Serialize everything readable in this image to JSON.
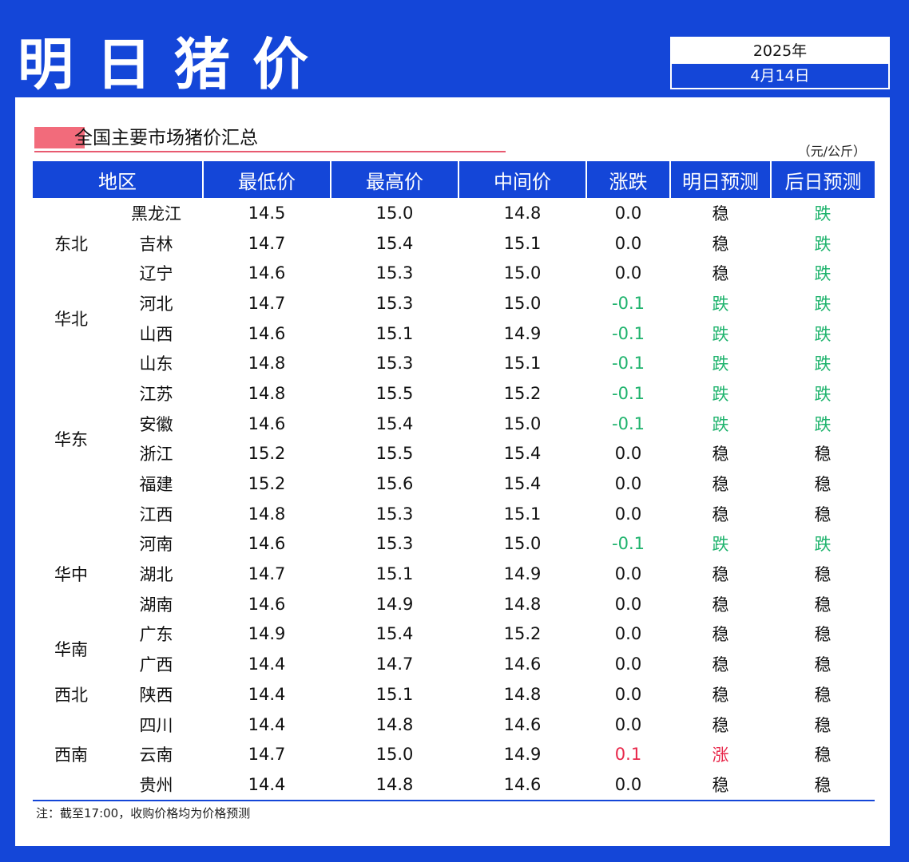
{
  "header": {
    "title": "明日猪价",
    "year": "2025年",
    "date": "4月14日"
  },
  "section": {
    "title": "全国主要市场猪价汇总",
    "unit": "（元/公斤）"
  },
  "columns": [
    "地区",
    "最低价",
    "最高价",
    "中间价",
    "涨跌",
    "明日预测",
    "后日预测"
  ],
  "groups": [
    {
      "region": "东北",
      "rows": [
        {
          "prov": "黑龙江",
          "low": "14.5",
          "high": "15.0",
          "mid": "14.8",
          "chg": "0.0",
          "tmr": "稳",
          "dat": "跌"
        },
        {
          "prov": "吉林",
          "low": "14.7",
          "high": "15.4",
          "mid": "15.1",
          "chg": "0.0",
          "tmr": "稳",
          "dat": "跌"
        },
        {
          "prov": "辽宁",
          "low": "14.6",
          "high": "15.3",
          "mid": "15.0",
          "chg": "0.0",
          "tmr": "稳",
          "dat": "跌"
        }
      ]
    },
    {
      "region": "华北",
      "rows": [
        {
          "prov": "河北",
          "low": "14.7",
          "high": "15.3",
          "mid": "15.0",
          "chg": "-0.1",
          "tmr": "跌",
          "dat": "跌"
        },
        {
          "prov": "山西",
          "low": "14.6",
          "high": "15.1",
          "mid": "14.9",
          "chg": "-0.1",
          "tmr": "跌",
          "dat": "跌"
        }
      ]
    },
    {
      "region": "华东",
      "rows": [
        {
          "prov": "山东",
          "low": "14.8",
          "high": "15.3",
          "mid": "15.1",
          "chg": "-0.1",
          "tmr": "跌",
          "dat": "跌"
        },
        {
          "prov": "江苏",
          "low": "14.8",
          "high": "15.5",
          "mid": "15.2",
          "chg": "-0.1",
          "tmr": "跌",
          "dat": "跌"
        },
        {
          "prov": "安徽",
          "low": "14.6",
          "high": "15.4",
          "mid": "15.0",
          "chg": "-0.1",
          "tmr": "跌",
          "dat": "跌"
        },
        {
          "prov": "浙江",
          "low": "15.2",
          "high": "15.5",
          "mid": "15.4",
          "chg": "0.0",
          "tmr": "稳",
          "dat": "稳"
        },
        {
          "prov": "福建",
          "low": "15.2",
          "high": "15.6",
          "mid": "15.4",
          "chg": "0.0",
          "tmr": "稳",
          "dat": "稳"
        },
        {
          "prov": "江西",
          "low": "14.8",
          "high": "15.3",
          "mid": "15.1",
          "chg": "0.0",
          "tmr": "稳",
          "dat": "稳"
        }
      ]
    },
    {
      "region": "华中",
      "rows": [
        {
          "prov": "河南",
          "low": "14.6",
          "high": "15.3",
          "mid": "15.0",
          "chg": "-0.1",
          "tmr": "跌",
          "dat": "跌"
        },
        {
          "prov": "湖北",
          "low": "14.7",
          "high": "15.1",
          "mid": "14.9",
          "chg": "0.0",
          "tmr": "稳",
          "dat": "稳"
        },
        {
          "prov": "湖南",
          "low": "14.6",
          "high": "14.9",
          "mid": "14.8",
          "chg": "0.0",
          "tmr": "稳",
          "dat": "稳"
        }
      ]
    },
    {
      "region": "华南",
      "rows": [
        {
          "prov": "广东",
          "low": "14.9",
          "high": "15.4",
          "mid": "15.2",
          "chg": "0.0",
          "tmr": "稳",
          "dat": "稳"
        },
        {
          "prov": "广西",
          "low": "14.4",
          "high": "14.7",
          "mid": "14.6",
          "chg": "0.0",
          "tmr": "稳",
          "dat": "稳"
        }
      ]
    },
    {
      "region": "西北",
      "rows": [
        {
          "prov": "陕西",
          "low": "14.4",
          "high": "15.1",
          "mid": "14.8",
          "chg": "0.0",
          "tmr": "稳",
          "dat": "稳"
        }
      ]
    },
    {
      "region": "西南",
      "rows": [
        {
          "prov": "四川",
          "low": "14.4",
          "high": "14.8",
          "mid": "14.6",
          "chg": "0.0",
          "tmr": "稳",
          "dat": "稳"
        },
        {
          "prov": "云南",
          "low": "14.7",
          "high": "15.0",
          "mid": "14.9",
          "chg": "0.1",
          "tmr": "涨",
          "dat": "稳"
        },
        {
          "prov": "贵州",
          "low": "14.4",
          "high": "14.8",
          "mid": "14.6",
          "chg": "0.0",
          "tmr": "稳",
          "dat": "稳"
        }
      ]
    }
  ],
  "footnote": "注：截至17:00，收购价格均为价格预测",
  "colors": {
    "primary": "#1446d8",
    "down": "#1fb36d",
    "up": "#e8274a",
    "accent": "#f26b7b"
  }
}
